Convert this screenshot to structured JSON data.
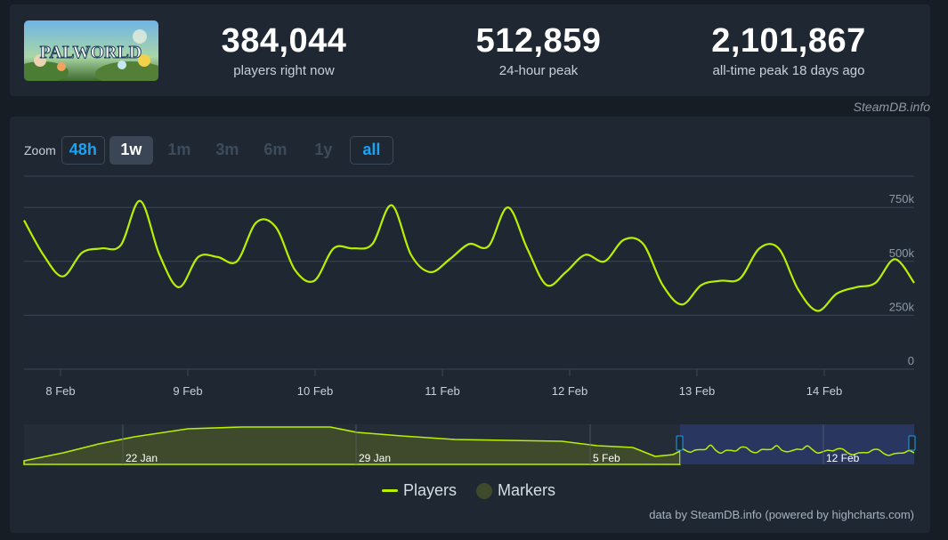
{
  "header": {
    "game_logo_text": "PALWORLD",
    "stats": [
      {
        "value": "384,044",
        "label": "players right now"
      },
      {
        "value": "512,859",
        "label": "24-hour peak"
      },
      {
        "value": "2,101,867",
        "label": "all-time peak 18 days ago"
      }
    ]
  },
  "source_credit": "SteamDB.info",
  "zoom": {
    "label": "Zoom",
    "buttons": [
      "48h",
      "1w",
      "1m",
      "3m",
      "6m",
      "1y",
      "all"
    ],
    "selected": "1w"
  },
  "legend": {
    "players": "Players",
    "markers": "Markers"
  },
  "data_credit": "data by SteamDB.info (powered by highcharts.com)",
  "colors": {
    "line": "#b8f000",
    "background": "#1f2733",
    "navigator_selection": "#2c3a6e",
    "accent": "#1aa3f2"
  },
  "chart_data": {
    "type": "line",
    "series": [
      {
        "name": "Players",
        "values": [
          690000,
          530000,
          430000,
          540000,
          560000,
          575000,
          780000,
          530000,
          380000,
          520000,
          520000,
          500000,
          680000,
          660000,
          460000,
          410000,
          560000,
          560000,
          580000,
          760000,
          530000,
          450000,
          510000,
          580000,
          570000,
          750000,
          560000,
          390000,
          450000,
          530000,
          500000,
          600000,
          580000,
          390000,
          300000,
          390000,
          410000,
          420000,
          560000,
          560000,
          370000,
          270000,
          350000,
          380000,
          400000,
          510000,
          400000
        ]
      }
    ],
    "x_ticks": [
      "8 Feb",
      "9 Feb",
      "10 Feb",
      "11 Feb",
      "12 Feb",
      "13 Feb",
      "14 Feb"
    ],
    "y_ticks": [
      "0",
      "250k",
      "500k",
      "750k"
    ],
    "ylim": [
      0,
      800000
    ],
    "navigator": {
      "x_ticks": [
        "22 Jan",
        "29 Jan",
        "5 Feb",
        "12 Feb"
      ],
      "selected_range": "7 Feb - 14 Feb"
    }
  }
}
